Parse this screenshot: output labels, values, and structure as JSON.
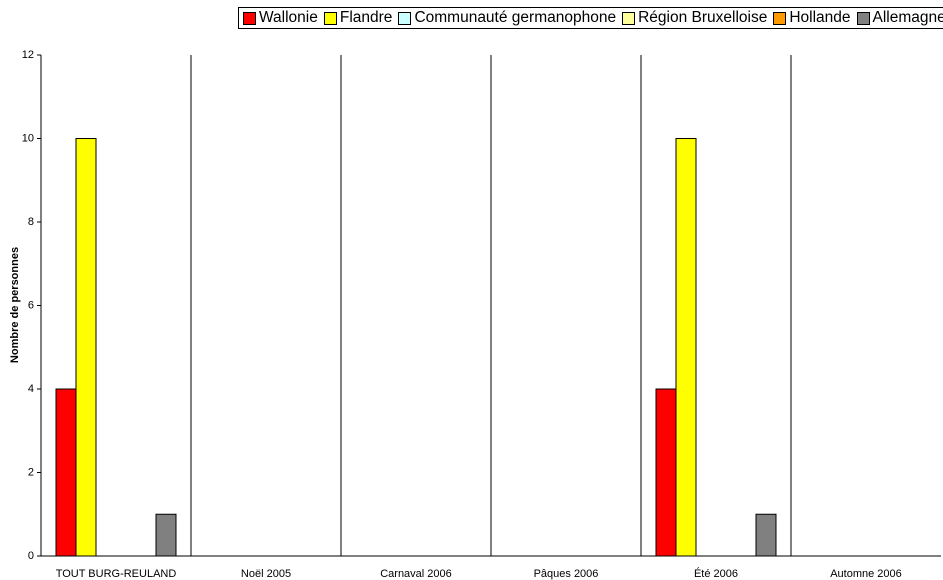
{
  "chart_data": {
    "type": "bar",
    "y_label": "Nombre de personnes",
    "categories": [
      "TOUT BURG-REULAND",
      "Noël 2005",
      "Carnaval 2006",
      "Pâques 2006",
      "Été 2006",
      "Automne 2006"
    ],
    "series": [
      {
        "name": "Wallonie",
        "color": "#ff0000",
        "values": [
          4,
          0,
          0,
          0,
          4,
          0
        ]
      },
      {
        "name": "Flandre",
        "color": "#ffff00",
        "values": [
          10,
          0,
          0,
          0,
          10,
          0
        ]
      },
      {
        "name": "Communauté germanophone",
        "color": "#ccffff",
        "values": [
          0,
          0,
          0,
          0,
          0,
          0
        ]
      },
      {
        "name": "Région Bruxelloise",
        "color": "#ffff99",
        "values": [
          0,
          0,
          0,
          0,
          0,
          0
        ]
      },
      {
        "name": "Hollande",
        "color": "#ff9900",
        "values": [
          0,
          0,
          0,
          0,
          0,
          0
        ]
      },
      {
        "name": "Allemagne",
        "color": "#808080",
        "values": [
          1,
          0,
          0,
          0,
          1,
          0
        ]
      }
    ],
    "ylim": [
      0,
      12
    ],
    "yticks": [
      0,
      2,
      4,
      6,
      8,
      10,
      12
    ],
    "grid": true,
    "legend": "top"
  }
}
